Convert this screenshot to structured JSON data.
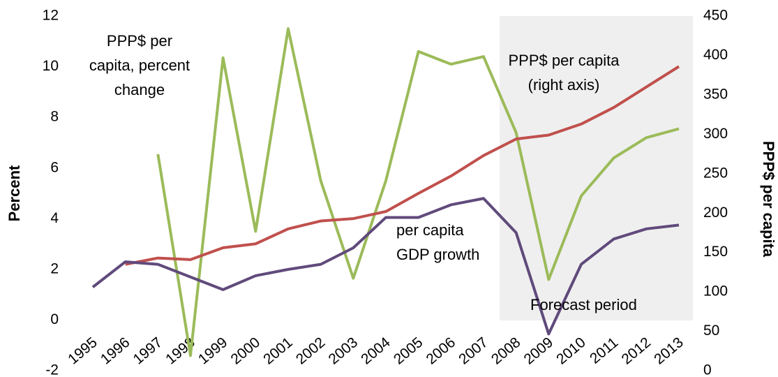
{
  "chart_data": {
    "type": "line",
    "y_label": "Percent",
    "y2_label": "PPP$ per capita",
    "categories": [
      "1995",
      "1996",
      "1997",
      "1998",
      "1999",
      "2000",
      "2001",
      "2002",
      "2003",
      "2004",
      "2005",
      "2006",
      "2007",
      "2008",
      "2009",
      "2010",
      "2011",
      "2012",
      "2013"
    ],
    "series": [
      {
        "color": "#9bbb59",
        "values": [
          null,
          null,
          6.55,
          -1.4,
          10.35,
          3.5,
          11.5,
          5.5,
          1.65,
          5.5,
          10.6,
          10.1,
          10.4,
          7.4,
          1.6,
          4.9,
          6.4,
          7.2,
          7.55
        ]
      },
      {
        "color": "#c0504d",
        "axis": "y2",
        "values": [
          null,
          135,
          143,
          141,
          156,
          161,
          180,
          190,
          193,
          202,
          225,
          247,
          273,
          294,
          299,
          313,
          334,
          360,
          386
        ]
      },
      {
        "color": "#604a7b",
        "values": [
          1.3,
          2.3,
          2.2,
          1.7,
          1.2,
          1.75,
          2.0,
          2.2,
          2.85,
          4.05,
          4.05,
          4.55,
          4.8,
          3.45,
          -0.55,
          2.2,
          3.2,
          3.6,
          3.75
        ]
      }
    ],
    "ylim": [
      -2,
      12
    ],
    "yticks": [
      -2,
      0,
      2,
      4,
      6,
      8,
      10,
      12
    ],
    "y2lim": [
      0,
      450
    ],
    "y2ticks": [
      0,
      50,
      100,
      150,
      200,
      250,
      300,
      350,
      400,
      450
    ],
    "annotations": [
      [
        "PPP$ per",
        "capita, percent",
        "change"
      ],
      [
        "PPP$ per capita",
        "(right axis)"
      ],
      [
        "per capita",
        "GDP growth"
      ],
      [
        "Forecast period"
      ]
    ]
  }
}
